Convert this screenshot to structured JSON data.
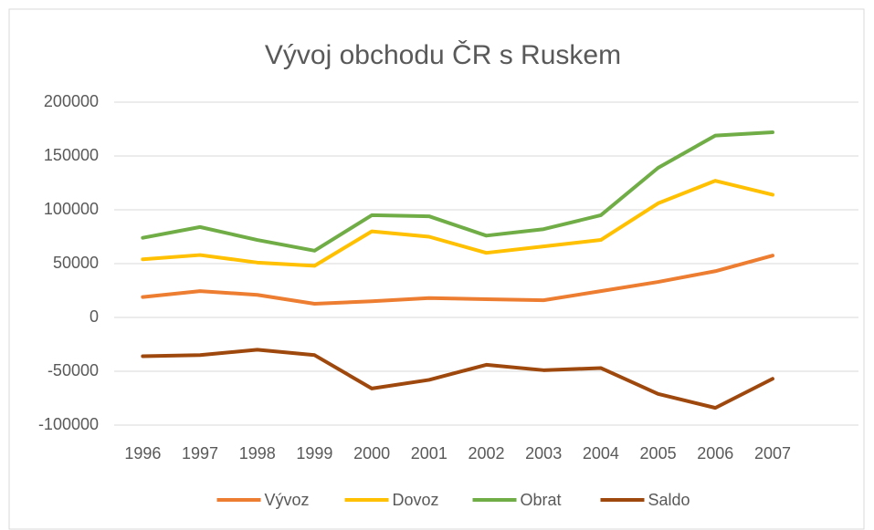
{
  "chart_data": {
    "type": "line",
    "title": "Vývoj obchodu ČR s Ruskem",
    "categories": [
      "1996",
      "1997",
      "1998",
      "1999",
      "2000",
      "2001",
      "2002",
      "2003",
      "2004",
      "2005",
      "2006",
      "2007",
      null
    ],
    "series": [
      {
        "name": "Vývoz",
        "color": "#ed7d31",
        "values": [
          19000,
          24500,
          21000,
          12700,
          15000,
          18000,
          17000,
          16000,
          24500,
          33000,
          43000,
          57500,
          null
        ]
      },
      {
        "name": "Dovoz",
        "color": "#ffc000",
        "values": [
          54000,
          58000,
          51000,
          48000,
          80000,
          75000,
          60000,
          66000,
          72000,
          106000,
          127000,
          114000,
          null
        ]
      },
      {
        "name": "Obrat",
        "color": "#70ad47",
        "values": [
          74000,
          84000,
          72000,
          62000,
          95000,
          94000,
          76000,
          82000,
          95000,
          139000,
          169000,
          172000,
          null
        ]
      },
      {
        "name": "Saldo",
        "color": "#9e480e",
        "values": [
          -36000,
          -35000,
          -30000,
          -35000,
          -66000,
          -58000,
          -44000,
          -49000,
          -47000,
          -71000,
          -84000,
          -57000,
          null
        ]
      }
    ],
    "ylim": [
      -100000,
      200000
    ],
    "yticks": [
      -100000,
      -50000,
      0,
      50000,
      100000,
      150000,
      200000
    ],
    "grid": true,
    "legend": "bottom"
  }
}
